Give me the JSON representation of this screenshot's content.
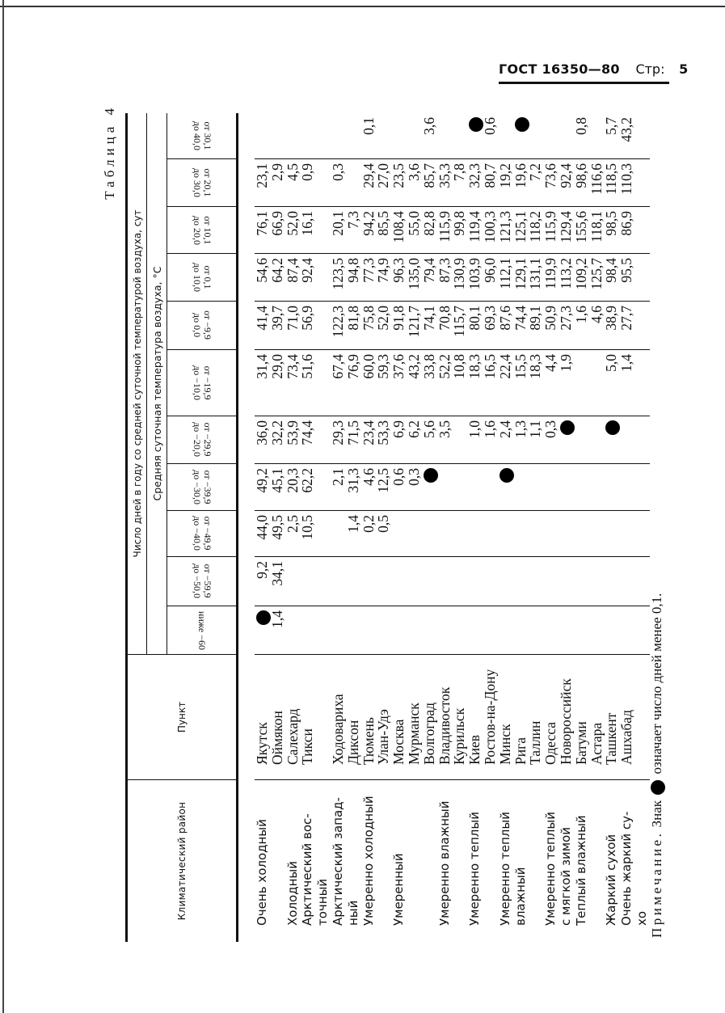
{
  "page_header": {
    "standard": "ГОСТ 16350—80",
    "page_label": "Стр:",
    "page_number": "5"
  },
  "table": {
    "caption": "Таблица 4",
    "headers": {
      "region": "Климатический район",
      "point": "Пункт",
      "group": "Число дней в году со средней суточной температурой воздуха, сут",
      "subgroup": "Средняя суточная температура воздуха, °С",
      "columns": [
        {
          "l1": "ниже −60",
          "l2": ""
        },
        {
          "l1": "от −59,9",
          "l2": "до −50,0"
        },
        {
          "l1": "от −49,9",
          "l2": "до −40,0"
        },
        {
          "l1": "от −39,9",
          "l2": "до −30,0"
        },
        {
          "l1": "от −29,9",
          "l2": "до −20,0"
        },
        {
          "l1": "от −19,9",
          "l2": "до −10,0"
        },
        {
          "l1": "от −9,9",
          "l2": "до 0,0"
        },
        {
          "l1": "от 0,1",
          "l2": "до 10,0"
        },
        {
          "l1": "от 10,1",
          "l2": "до 20,0"
        },
        {
          "l1": "от 20,1",
          "l2": "до 30,0"
        },
        {
          "l1": "от 30,1",
          "l2": "до 40,0"
        }
      ]
    },
    "rows": [
      {
        "region": "Очень холодный",
        "city": "Якутск",
        "values": [
          "●",
          "9,2",
          "44,0",
          "49,2",
          "36,0",
          "31,4",
          "41,4",
          "54,6",
          "76,1",
          "23,1",
          ""
        ]
      },
      {
        "region": "",
        "city": "Оймякон",
        "values": [
          "1,4",
          "34,1",
          "49,5",
          "45,1",
          "32,2",
          "29,0",
          "39,7",
          "64,2",
          "66,9",
          "2,9",
          ""
        ]
      },
      {
        "region": "Холодный",
        "city": "Салехард",
        "values": [
          "",
          "",
          "2,5",
          "20,3",
          "53,9",
          "73,4",
          "71,0",
          "87,4",
          "52,0",
          "4,5",
          ""
        ]
      },
      {
        "region": "Арктический вос-",
        "city": "Тикси",
        "values": [
          "",
          "",
          "10,5",
          "62,2",
          "74,4",
          "51,6",
          "56,9",
          "92,4",
          "16,1",
          "0,9",
          ""
        ]
      },
      {
        "region": "точный",
        "city": "",
        "values": [
          "",
          "",
          "",
          "",
          "",
          "",
          "",
          "",
          "",
          "",
          ""
        ]
      },
      {
        "region": "Арктический запад-",
        "city": "Ходовариха",
        "values": [
          "",
          "",
          "",
          "2,1",
          "29,3",
          "67,4",
          "122,3",
          "123,5",
          "20,1",
          "0,3",
          ""
        ]
      },
      {
        "region": "ный",
        "city": "Диксон",
        "values": [
          "",
          "",
          "1,4",
          "31,3",
          "71,5",
          "76,9",
          "81,8",
          "94,8",
          "7,3",
          "",
          ""
        ]
      },
      {
        "region": "Умеренно холодный",
        "city": "Тюмень",
        "values": [
          "",
          "",
          "0,2",
          "4,6",
          "23,4",
          "60,0",
          "75,8",
          "77,3",
          "94,2",
          "29,4",
          "0,1"
        ]
      },
      {
        "region": "",
        "city": "Улан-Удэ",
        "values": [
          "",
          "",
          "0,5",
          "12,5",
          "53,3",
          "59,3",
          "52,0",
          "74,9",
          "85,5",
          "27,0",
          ""
        ]
      },
      {
        "region": "Умеренный",
        "city": "Москва",
        "values": [
          "",
          "",
          "",
          "0,6",
          "6,9",
          "37,6",
          "91,8",
          "96,3",
          "108,4",
          "23,5",
          ""
        ]
      },
      {
        "region": "",
        "city": "Мурманск",
        "values": [
          "",
          "",
          "",
          "0,3",
          "6,2",
          "43,2",
          "121,7",
          "135,0",
          "55,0",
          "3,6",
          ""
        ]
      },
      {
        "region": "",
        "city": "Волгоград",
        "values": [
          "",
          "",
          "",
          "●",
          "5,6",
          "33,8",
          "74,1",
          "79,4",
          "82,8",
          "85,7",
          "3,6"
        ]
      },
      {
        "region": "Умеренно влажный",
        "city": "Владивосток",
        "values": [
          "",
          "",
          "",
          "",
          "3,5",
          "52,2",
          "70,8",
          "87,3",
          "115,9",
          "35,3",
          ""
        ]
      },
      {
        "region": "",
        "city": "Курильск",
        "values": [
          "",
          "",
          "",
          "",
          "",
          "10,8",
          "115,7",
          "130,9",
          "99,8",
          "7,8",
          ""
        ]
      },
      {
        "region": "Умеренно теплый",
        "city": "Киев",
        "values": [
          "",
          "",
          "",
          "",
          "1,0",
          "18,3",
          "80,1",
          "103,9",
          "119,4",
          "32,3",
          "●"
        ]
      },
      {
        "region": "",
        "city": "Ростов-на-Дону",
        "values": [
          "",
          "",
          "",
          "",
          "1,6",
          "16,5",
          "69,3",
          "96,0",
          "100,3",
          "80,7",
          "0,6"
        ]
      },
      {
        "region": "Умеренно теплый",
        "city": "Минск",
        "values": [
          "",
          "",
          "",
          "●",
          "2,4",
          "22,4",
          "87,6",
          "112,1",
          "121,3",
          "19,2",
          ""
        ]
      },
      {
        "region": "влажный",
        "city": "Рига",
        "values": [
          "",
          "",
          "",
          "",
          "1,3",
          "15,5",
          "74,4",
          "129,1",
          "125,1",
          "19,6",
          "●"
        ]
      },
      {
        "region": "",
        "city": "Таллин",
        "values": [
          "",
          "",
          "",
          "",
          "1,1",
          "18,3",
          "89,1",
          "131,1",
          "118,2",
          "7,2",
          ""
        ]
      },
      {
        "region": "Умеренно теплый",
        "city": "Одесса",
        "values": [
          "",
          "",
          "",
          "",
          "0,3",
          "4,4",
          "50,9",
          "119,9",
          "115,9",
          "73,6",
          ""
        ]
      },
      {
        "region": "с мягкой зимой",
        "city": "Новороссийск",
        "values": [
          "",
          "",
          "",
          "",
          "●",
          "1,9",
          "27,3",
          "113,2",
          "129,4",
          "92,4",
          ""
        ]
      },
      {
        "region": "Теплый влажный",
        "city": "Батуми",
        "values": [
          "",
          "",
          "",
          "",
          "",
          "",
          "1,6",
          "109,2",
          "155,6",
          "98,6",
          "0,8"
        ]
      },
      {
        "region": "",
        "city": "Астара",
        "values": [
          "",
          "",
          "",
          "",
          "",
          "",
          "4,6",
          "125,7",
          "118,1",
          "116,6",
          ""
        ]
      },
      {
        "region": "Жаркий сухой",
        "city": "Ташкент",
        "values": [
          "",
          "",
          "",
          "",
          "●",
          "5,0",
          "38,9",
          "98,4",
          "98,5",
          "118,5",
          "5,7"
        ]
      },
      {
        "region": "Очень жаркий су-",
        "city": "Ашхабад",
        "values": [
          "",
          "",
          "",
          "",
          "",
          "1,4",
          "27,7",
          "95,5",
          "86,9",
          "110,3",
          "43,2"
        ]
      },
      {
        "region": "хо",
        "city": "",
        "values": [
          "",
          "",
          "",
          "",
          "",
          "",
          "",
          "",
          "",
          "",
          ""
        ]
      }
    ],
    "note": {
      "label": "Примечание.",
      "text_before": "Знак",
      "symbol": "●",
      "text_after": "означает число дней менее 0,1."
    }
  },
  "colors": {
    "ink": "#111111",
    "paper": "#ffffff"
  }
}
